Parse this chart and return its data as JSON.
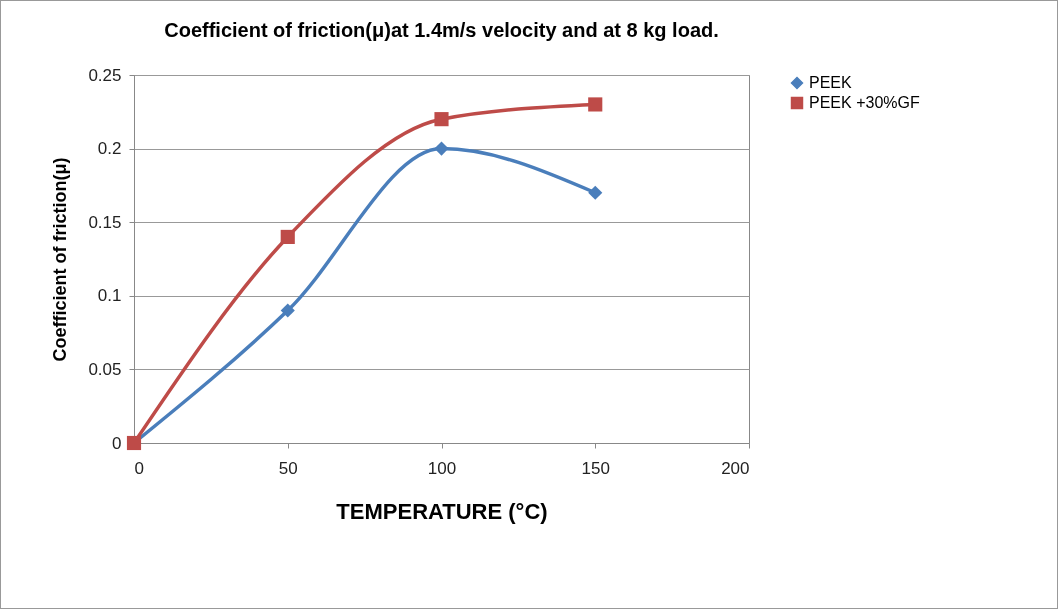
{
  "chart_data": {
    "type": "line",
    "title": "Coefficient of friction(μ)at 1.4m/s velocity  and at 8 kg load.",
    "xlabel": "TEMPERATURE (°C)",
    "ylabel": "Coefficient of friction(μ)",
    "x": [
      0,
      50,
      100,
      150
    ],
    "series": [
      {
        "name": "PEEK",
        "color": "#4a7ebb",
        "marker": "diamond",
        "values": [
          0,
          0.09,
          0.2,
          0.17
        ]
      },
      {
        "name": "PEEK +30%GF",
        "color": "#be4b48",
        "marker": "square",
        "values": [
          0,
          0.14,
          0.22,
          0.23
        ]
      }
    ],
    "xlim": [
      0,
      200
    ],
    "xticks": [
      0,
      50,
      100,
      150,
      200
    ],
    "ylim": [
      0,
      0.25
    ],
    "yticks": [
      0,
      0.05,
      0.1,
      0.15,
      0.2,
      0.25
    ],
    "grid": "y",
    "legend": "right",
    "line_style": "solid"
  }
}
